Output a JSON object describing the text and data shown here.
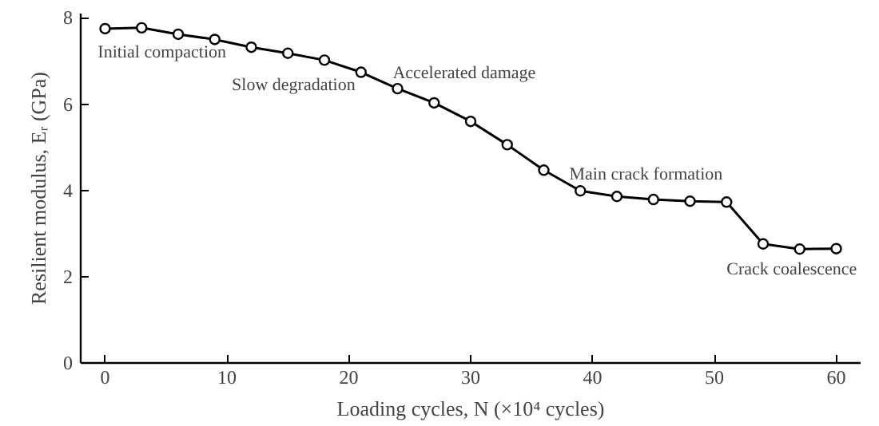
{
  "chart_data": {
    "type": "line",
    "xlabel": "Loading cycles, N (×10⁴ cycles)",
    "ylabel": "Resilient modulus, Eᵣ (GPa)",
    "x": [
      0,
      3,
      6,
      9,
      12,
      15,
      18,
      21,
      24,
      27,
      30,
      33,
      36,
      39,
      42,
      45,
      48,
      51,
      54,
      57,
      60
    ],
    "series": [
      {
        "color": "#000000",
        "values": [
          7.75,
          7.77,
          7.62,
          7.5,
          7.32,
          7.18,
          7.02,
          6.74,
          6.36,
          6.03,
          5.6,
          5.06,
          4.47,
          3.99,
          3.86,
          3.79,
          3.75,
          3.73,
          2.76,
          2.64,
          2.65
        ]
      }
    ],
    "xlim": [
      -2,
      62
    ],
    "ylim": [
      0,
      8.1
    ],
    "xticks": [
      0,
      10,
      20,
      30,
      40,
      50,
      60
    ],
    "yticks": [
      0,
      2,
      4,
      6,
      8
    ],
    "grid": false,
    "marker": "circle",
    "line_style": "solid",
    "annotations": [
      "Initial compaction",
      "Slow degradation",
      "Accelerated damage",
      "Main crack formation",
      "Crack coalescence"
    ]
  }
}
